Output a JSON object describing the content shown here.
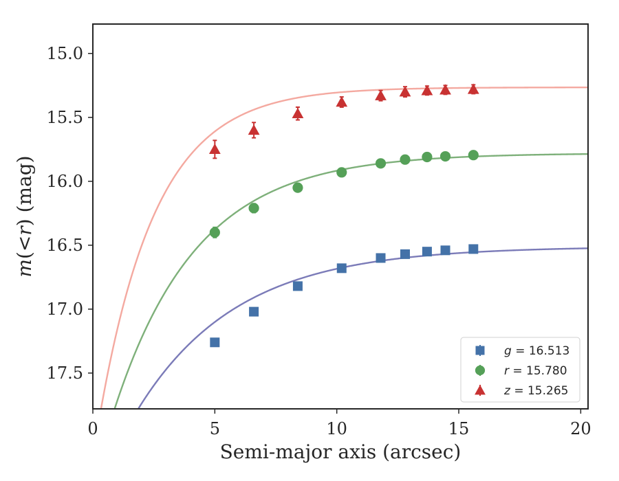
{
  "chart_data": {
    "type": "scatter",
    "xlabel": "Semi-major axis (arcsec)",
    "ylabel_parts": [
      "m",
      "(",
      "<",
      "r",
      ")",
      " (mag)"
    ],
    "xlim": [
      0,
      20.3
    ],
    "ylim": [
      17.78,
      14.77
    ],
    "y_inverted": true,
    "x_ticks": [
      0,
      5,
      10,
      15,
      20
    ],
    "x_tick_labels": [
      "0",
      "5",
      "10",
      "15",
      "20"
    ],
    "y_ticks": [
      15.0,
      15.5,
      16.0,
      16.5,
      17.0,
      17.5
    ],
    "y_tick_labels": [
      "15.0",
      "15.5",
      "16.0",
      "16.5",
      "17.0",
      "17.5"
    ],
    "legend_position": "lower-right",
    "series": [
      {
        "name": "g",
        "legend_label": "g = 16.513",
        "legend_parts": [
          "g",
          " = 16.513"
        ],
        "marker": "square",
        "marker_color": "#4472a8",
        "curve_color": "#7b7bb8",
        "x": [
          5.0,
          6.6,
          8.4,
          10.2,
          11.8,
          12.8,
          13.7,
          14.45,
          15.6
        ],
        "y": [
          17.26,
          17.02,
          16.82,
          16.68,
          16.6,
          16.57,
          16.55,
          16.54,
          16.53
        ],
        "yerr": [
          0.02,
          0.02,
          0.02,
          0.02,
          0.015,
          0.015,
          0.015,
          0.015,
          0.015
        ],
        "curve_params": {
          "m_inf": 16.51,
          "amp": 2.0,
          "scale": 4.1
        }
      },
      {
        "name": "r",
        "legend_label": "r = 15.780",
        "legend_parts": [
          "r",
          " = 15.780"
        ],
        "marker": "circle",
        "marker_color": "#55a058",
        "curve_color": "#7eb07a",
        "x": [
          5.0,
          6.6,
          8.4,
          10.2,
          11.8,
          12.8,
          13.7,
          14.45,
          15.6
        ],
        "y": [
          16.4,
          16.21,
          16.05,
          15.93,
          15.86,
          15.83,
          15.81,
          15.805,
          15.795
        ],
        "yerr": [
          0.04,
          0.035,
          0.025,
          0.02,
          0.02,
          0.02,
          0.015,
          0.015,
          0.015
        ],
        "curve_params": {
          "m_inf": 15.78,
          "amp": 2.6,
          "scale": 3.4
        }
      },
      {
        "name": "z",
        "legend_label": "z = 15.265",
        "legend_parts": [
          "z",
          " = 15.265"
        ],
        "marker": "triangle",
        "marker_color": "#c83232",
        "curve_color": "#f4a9a0",
        "x": [
          5.0,
          6.6,
          8.4,
          10.2,
          11.8,
          12.8,
          13.7,
          14.45,
          15.6
        ],
        "y": [
          15.75,
          15.6,
          15.47,
          15.38,
          15.33,
          15.3,
          15.29,
          15.285,
          15.28
        ],
        "yerr": [
          0.07,
          0.06,
          0.05,
          0.04,
          0.04,
          0.04,
          0.035,
          0.035,
          0.035
        ],
        "curve_params": {
          "m_inf": 15.265,
          "amp": 2.9,
          "scale": 2.35
        }
      }
    ]
  }
}
